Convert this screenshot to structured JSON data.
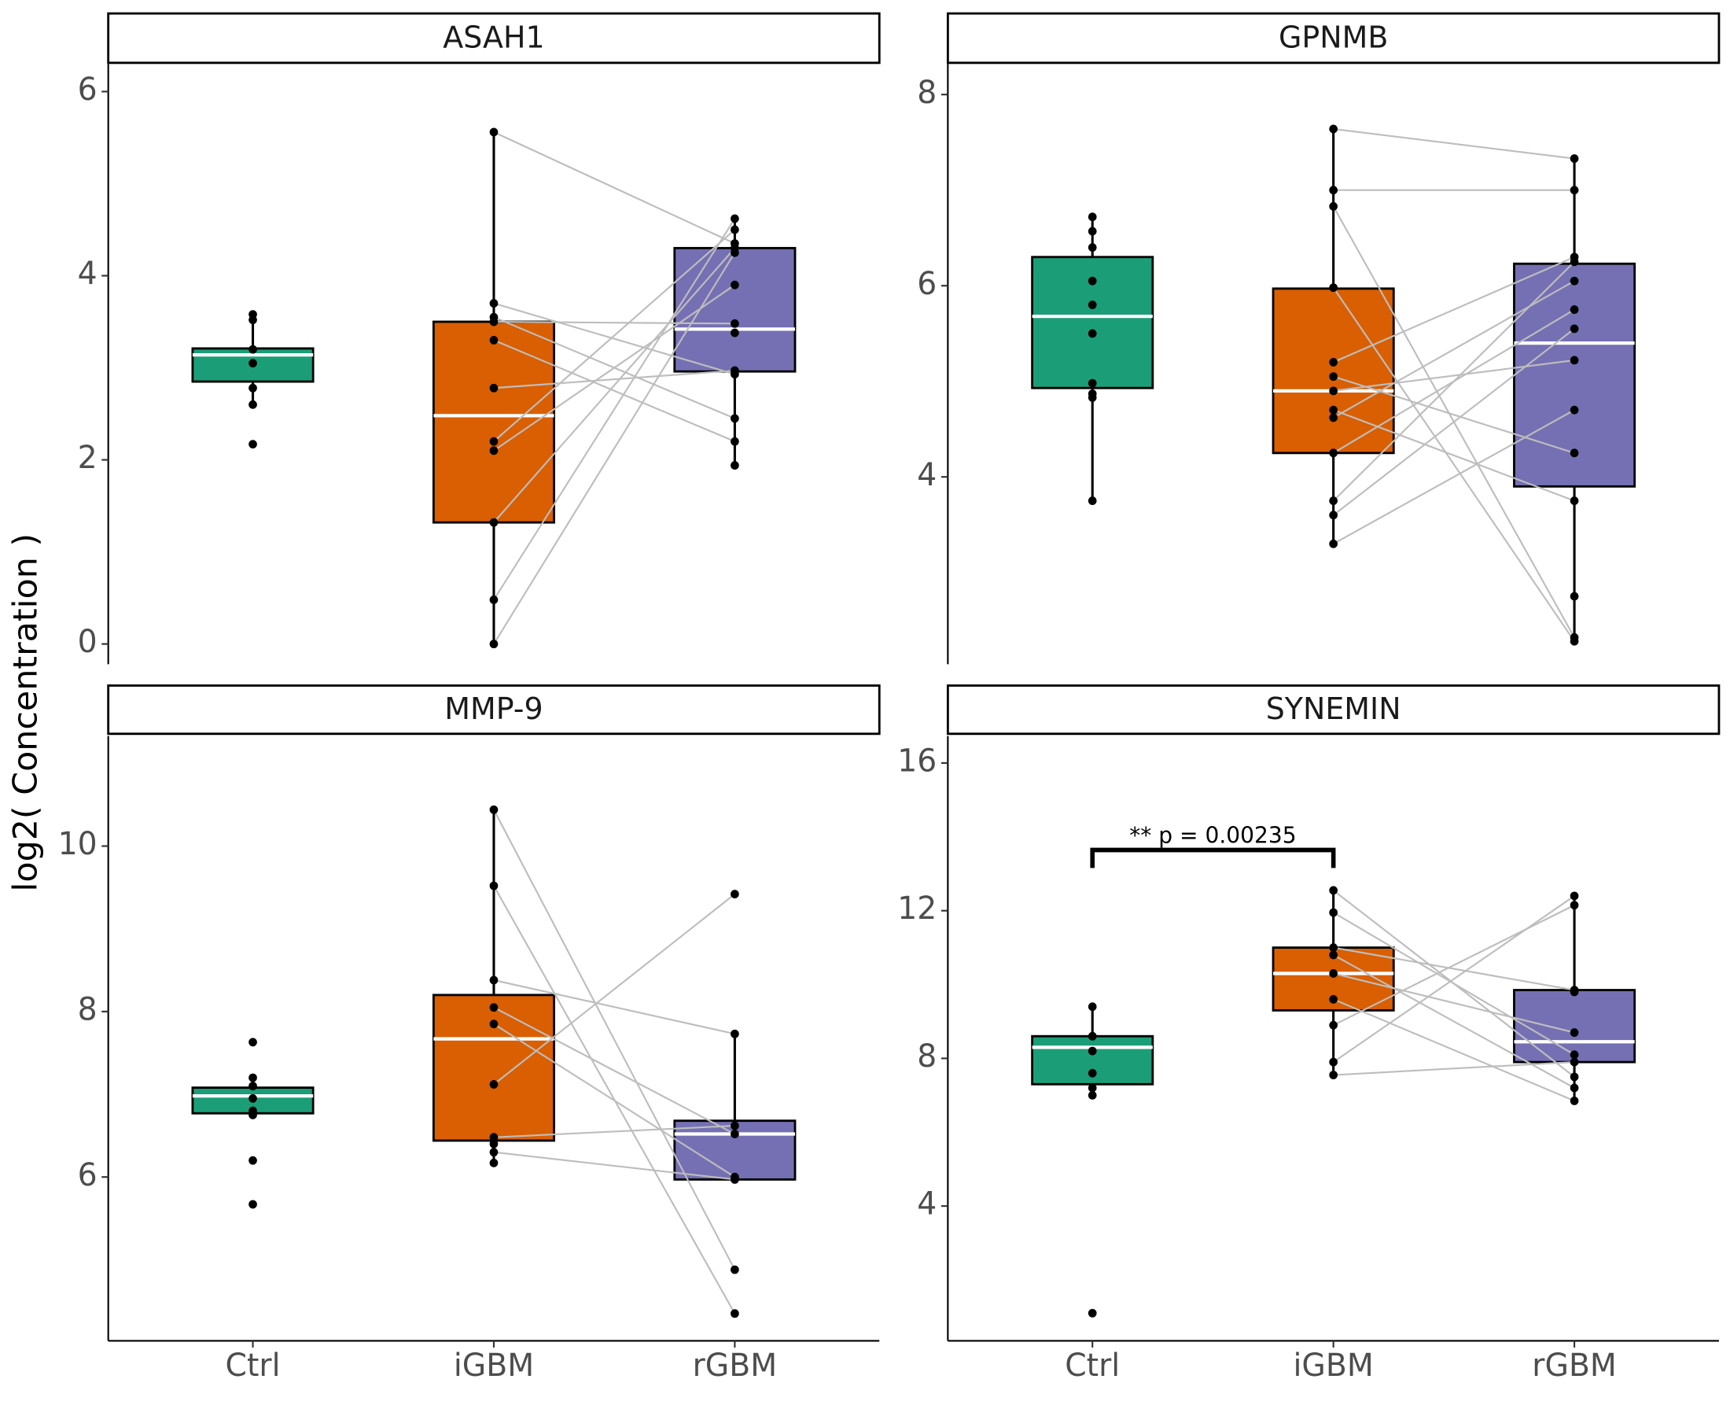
{
  "y_label": "log2( Concentration )",
  "categories": [
    "Ctrl",
    "iGBM",
    "rGBM"
  ],
  "colors": [
    "#1b9e77",
    "#d95f02",
    "#7570b3"
  ],
  "chart_data": [
    {
      "type": "box",
      "title": "ASAH1",
      "ylim": [
        -0.22,
        6.3
      ],
      "yticks": [
        0,
        2,
        4,
        6
      ],
      "boxes": [
        {
          "q1": 2.85,
          "median": 3.14,
          "q3": 3.21,
          "whislo": 2.6,
          "whishi": 3.58
        },
        {
          "q1": 1.32,
          "median": 2.48,
          "q3": 3.5,
          "whislo": 0,
          "whishi": 5.56
        },
        {
          "q1": 2.96,
          "median": 3.42,
          "q3": 4.3,
          "whislo": 1.94,
          "whishi": 4.62
        }
      ],
      "points": [
        [
          3.58,
          3.52,
          3.2,
          3.05,
          2.78,
          2.6,
          2.17
        ],
        [
          5.56,
          3.7,
          3.55,
          3.5,
          3.3,
          2.78,
          2.2,
          2.1,
          1.32,
          0.48,
          0
        ],
        [
          4.35,
          2.93,
          2.45,
          3.48,
          2.2,
          2.97,
          4.5,
          3.9,
          4.3,
          4.62,
          4.25,
          3.38,
          1.94
        ]
      ]
    },
    {
      "type": "box",
      "title": "GPNMB",
      "ylim": [
        2.04,
        8.32
      ],
      "yticks": [
        4,
        6,
        8
      ],
      "boxes": [
        {
          "q1": 4.93,
          "median": 5.68,
          "q3": 6.3,
          "whislo": 3.75,
          "whishi": 6.72
        },
        {
          "q1": 4.25,
          "median": 4.9,
          "q3": 5.97,
          "whislo": 3.3,
          "whishi": 7.64
        },
        {
          "q1": 3.9,
          "median": 5.4,
          "q3": 6.23,
          "whislo": 2.28,
          "whishi": 7.33
        }
      ],
      "points": [
        [
          6.72,
          6.57,
          6.4,
          6.05,
          5.8,
          5.5,
          4.98,
          4.87,
          4.83,
          3.75
        ],
        [
          7.64,
          7.0,
          6.83,
          5.98,
          5.2,
          5.05,
          4.9,
          4.7,
          4.62,
          4.25,
          3.75,
          3.6,
          3.3
        ],
        [
          7.33,
          7.0,
          2.32,
          2.28,
          6.3,
          4.25,
          5.22,
          3.75,
          6.05,
          5.75,
          6.25,
          5.55,
          4.7,
          2.75
        ]
      ]
    },
    {
      "type": "box",
      "title": "MMP-9",
      "ylim": [
        4.02,
        11.33
      ],
      "yticks": [
        6,
        8,
        10
      ],
      "boxes": [
        {
          "q1": 6.77,
          "median": 6.98,
          "q3": 7.08,
          "whislo": 6.75,
          "whishi": 7.2
        },
        {
          "q1": 6.44,
          "median": 7.67,
          "q3": 8.2,
          "whislo": 6.17,
          "whishi": 10.44
        },
        {
          "q1": 5.97,
          "median": 6.52,
          "q3": 6.68,
          "whislo": 5.97,
          "whishi": 7.73
        }
      ],
      "points": [
        [
          7.63,
          7.2,
          7.1,
          6.95,
          6.8,
          6.75,
          6.2,
          5.67
        ],
        [
          10.44,
          9.52,
          8.38,
          8.05,
          7.85,
          7.12,
          6.48,
          6.3,
          6.4,
          6.17
        ],
        [
          4.88,
          4.35,
          7.73,
          6.52,
          6.0,
          9.42,
          6.62,
          5.97
        ]
      ]
    },
    {
      "type": "box",
      "title": "SYNEMIN",
      "ylim": [
        0.35,
        16.73
      ],
      "yticks": [
        4,
        8,
        12,
        16
      ],
      "annotation": {
        "text": "** p = 0.00235",
        "groups": [
          "Ctrl",
          "iGBM"
        ]
      },
      "boxes": [
        {
          "q1": 7.3,
          "median": 8.3,
          "q3": 8.6,
          "whislo": 7.0,
          "whishi": 9.4
        },
        {
          "q1": 9.3,
          "median": 10.3,
          "q3": 11.0,
          "whislo": 7.55,
          "whishi": 12.55
        },
        {
          "q1": 7.9,
          "median": 8.45,
          "q3": 9.85,
          "whislo": 6.85,
          "whishi": 12.4
        }
      ],
      "points": [
        [
          9.4,
          8.6,
          8.2,
          7.6,
          7.2,
          7.0,
          1.1
        ],
        [
          12.55,
          11.95,
          11.0,
          10.8,
          10.3,
          9.6,
          8.9,
          7.9,
          7.55
        ],
        [
          7.5,
          8.1,
          9.85,
          7.2,
          8.7,
          6.85,
          12.15,
          12.4,
          7.9,
          9.8
        ]
      ]
    }
  ]
}
